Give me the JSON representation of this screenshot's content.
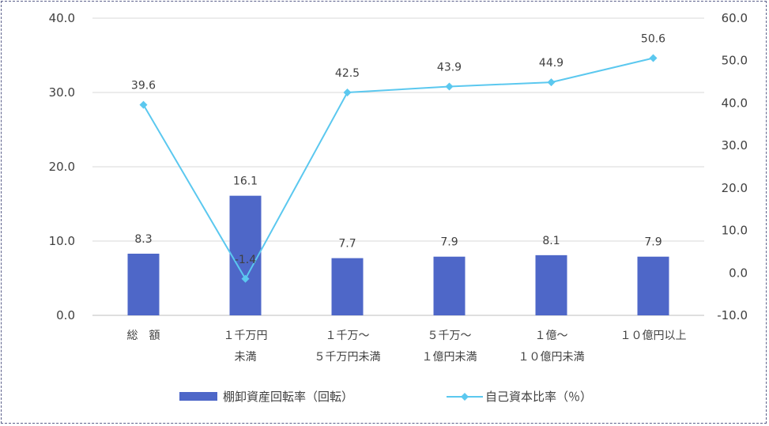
{
  "chart_data": {
    "type": "bar",
    "categories": [
      [
        "総　額"
      ],
      [
        "１千万円",
        "未満"
      ],
      [
        "１千万～",
        "５千万円未満"
      ],
      [
        "５千万～",
        "１億円未満"
      ],
      [
        "１億～",
        "１０億円未満"
      ],
      [
        "１０億円以上"
      ]
    ],
    "series": [
      {
        "name": "棚卸資産回転率（回転）",
        "type": "bar",
        "axis": "left",
        "color": "#4e67c8",
        "values": [
          8.3,
          16.1,
          7.7,
          7.9,
          8.1,
          7.9
        ],
        "labels": [
          "8.3",
          "16.1",
          "7.7",
          "7.9",
          "8.1",
          "7.9"
        ]
      },
      {
        "name": "自己資本比率（％）",
        "type": "line",
        "axis": "right",
        "color": "#5bc8ef",
        "marker": "diamond",
        "values": [
          39.6,
          -1.4,
          42.5,
          43.9,
          44.9,
          50.6
        ],
        "labels": [
          "39.6",
          "-1.4",
          "42.5",
          "43.9",
          "44.9",
          "50.6"
        ]
      }
    ],
    "y_left": {
      "ylim": [
        0,
        40
      ],
      "ticks": [
        0,
        10,
        20,
        30,
        40
      ],
      "tick_labels": [
        "0.0",
        "10.0",
        "20.0",
        "30.0",
        "40.0"
      ]
    },
    "y_right": {
      "ylim": [
        -10,
        60
      ],
      "ticks": [
        -10,
        0,
        10,
        20,
        30,
        40,
        50,
        60
      ],
      "tick_labels": [
        "-10.0",
        "0.0",
        "10.0",
        "20.0",
        "30.0",
        "40.0",
        "50.0",
        "60.0"
      ]
    },
    "grid": true,
    "legend_position": "bottom"
  }
}
